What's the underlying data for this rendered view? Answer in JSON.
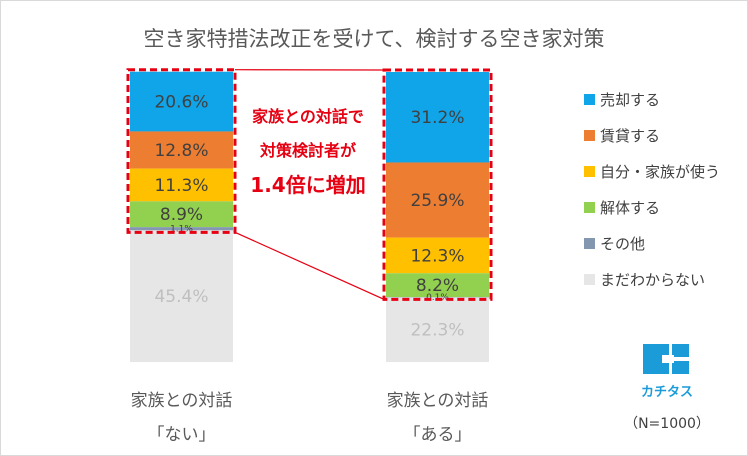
{
  "chart_data": {
    "type": "bar",
    "stacked": true,
    "title": "空き家特措法改正を受けて、検討する空き家対策",
    "categories": [
      "家族との対話\n「ない」",
      "家族との対話\n「ある」"
    ],
    "series": [
      {
        "name": "売却する",
        "color": "#10a4e8",
        "values": [
          20.6,
          31.2
        ]
      },
      {
        "name": "賃貸する",
        "color": "#ed7d31",
        "values": [
          12.8,
          25.9
        ]
      },
      {
        "name": "自分・家族が使う",
        "color": "#ffc000",
        "values": [
          11.3,
          12.3
        ]
      },
      {
        "name": "解体する",
        "color": "#92d050",
        "values": [
          8.9,
          8.2
        ]
      },
      {
        "name": "その他",
        "color": "#8497b0",
        "values": [
          1.1,
          0.1
        ]
      },
      {
        "name": "まだわからない",
        "color": "#e7e6e6",
        "values": [
          45.4,
          22.3
        ]
      }
    ],
    "value_labels": [
      [
        "20.6%",
        "12.8%",
        "11.3%",
        "8.9%",
        "1.1%",
        "45.4%"
      ],
      [
        "31.2%",
        "25.9%",
        "12.3%",
        "8.2%",
        "0.1%",
        "22.3%"
      ]
    ],
    "ylim": [
      0,
      100
    ],
    "legend": "right",
    "grid": false,
    "annotation": [
      "家族との対話で",
      "対策検討者が",
      "1.4倍に増加"
    ]
  },
  "brand": {
    "name": "カチタス"
  },
  "sample_note": "（N=1000）",
  "colors": {
    "highlight": "#e60012",
    "brand": "#1b9cd8"
  }
}
